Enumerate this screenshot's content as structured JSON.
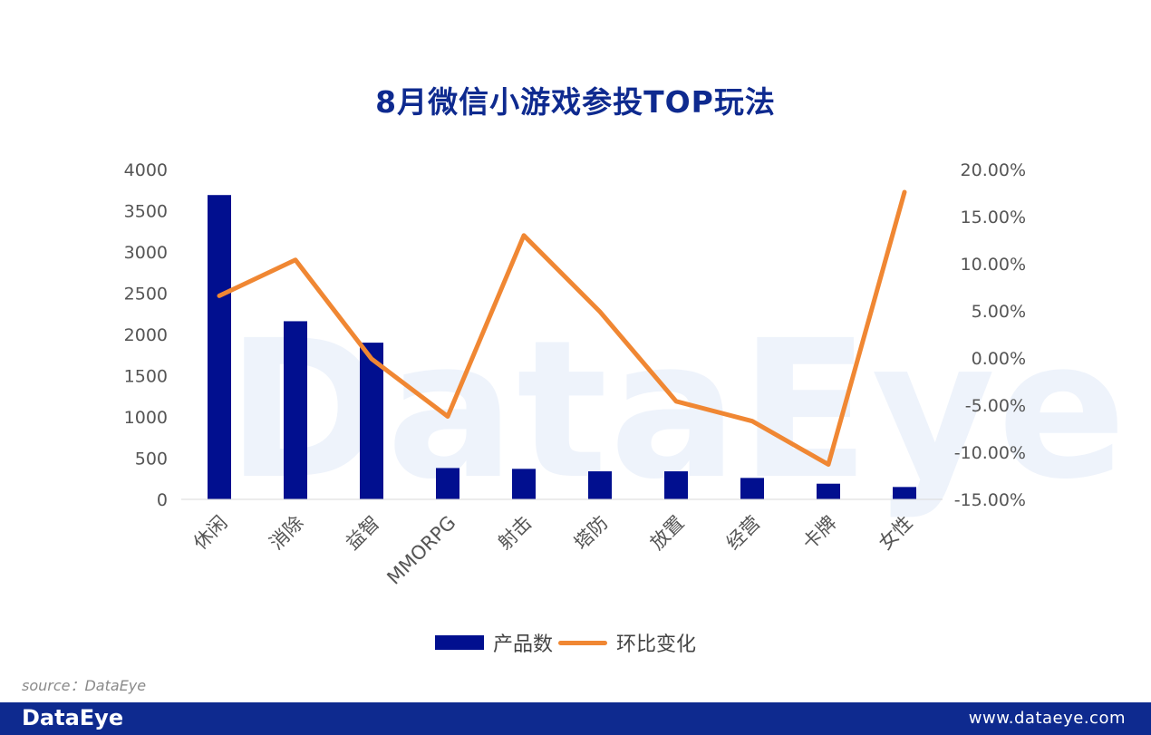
{
  "title": "8月微信小游戏参投TOP玩法",
  "watermark": "DataEye",
  "source": "source：DataEye",
  "footer": {
    "logo": "DataEye",
    "url": "www.dataeye.com"
  },
  "colors": {
    "bar": "#010f8f",
    "line": "#f08733",
    "title": "#0e2a8f",
    "footer": "#0e2a8f"
  },
  "chart_data": {
    "type": "bar",
    "categories": [
      "休闲",
      "消除",
      "益智",
      "MMORPG",
      "射击",
      "塔防",
      "放置",
      "经营",
      "卡牌",
      "女性"
    ],
    "series": [
      {
        "name": "产品数",
        "type": "bar",
        "axis": "left",
        "values": [
          3690,
          2160,
          1900,
          380,
          370,
          340,
          340,
          260,
          190,
          150
        ]
      },
      {
        "name": "环比变化",
        "type": "line",
        "axis": "right",
        "values": [
          6.6,
          10.4,
          -0.1,
          -6.2,
          13.0,
          4.9,
          -4.6,
          -6.7,
          -11.3,
          17.6
        ]
      }
    ],
    "ylim_left": [
      0,
      4000
    ],
    "yticks_left": [
      "4000",
      "3500",
      "3000",
      "2500",
      "2000",
      "1500",
      "1000",
      "500",
      "0"
    ],
    "ylim_right": [
      -15,
      20
    ],
    "yticks_right": [
      "20.00%",
      "15.00%",
      "10.00%",
      "5.00%",
      "0.00%",
      "-5.00%",
      "-10.00%",
      "-15.00%"
    ],
    "grid": false,
    "legend_position": "bottom"
  }
}
